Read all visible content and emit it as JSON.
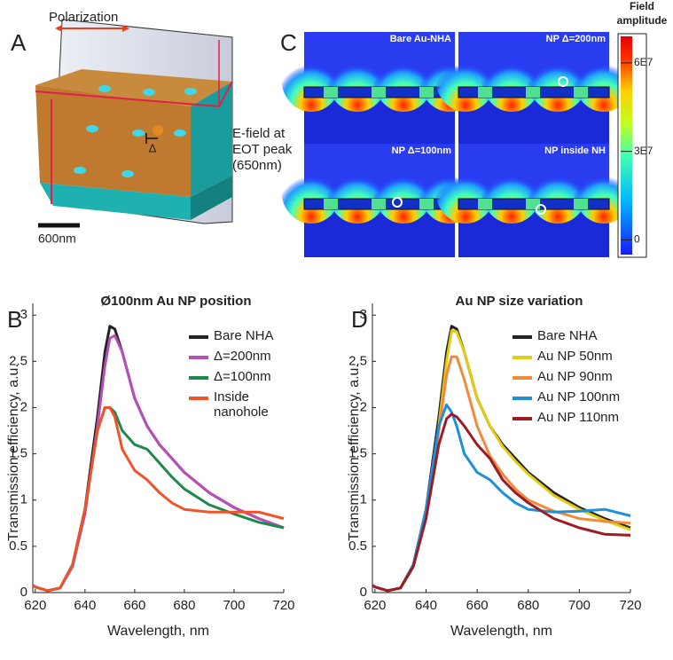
{
  "panel_labels": [
    "A",
    "B",
    "C",
    "D"
  ],
  "panel_a": {
    "polarization": "Polarization",
    "delta": "Δ",
    "scale_bar": "600nm",
    "annotation": "E-field at EOT peak (650nm)"
  },
  "panel_c": {
    "map_titles": [
      "Bare Au-NHA",
      "NP Δ=200nm",
      "NP Δ=100nm",
      "NP inside NH"
    ],
    "colorbar": {
      "title": "Field amplitude",
      "lim": [
        -5000000,
        69000000
      ],
      "ticks": [
        0,
        {
          "value": 30000000,
          "label": "3E7"
        },
        {
          "value": 60000000,
          "label": "6E7"
        }
      ]
    }
  },
  "chart_data": [
    {
      "type": "line",
      "title": "Ø100nm Au NP position",
      "x_label": "Wavelength, nm",
      "y_label": "Transmission efficiency, a.u.",
      "x": [
        619,
        620,
        625,
        630,
        635,
        640,
        645,
        648,
        650,
        652,
        655,
        660,
        665,
        670,
        675,
        680,
        690,
        700,
        710,
        720
      ],
      "xlim": [
        619,
        720
      ],
      "ylim": [
        0,
        3.05
      ],
      "xticks": [
        620,
        640,
        660,
        680,
        700,
        720
      ],
      "yticks": [
        0,
        0.5,
        1,
        1.5,
        2,
        2.5,
        3
      ],
      "grid": false,
      "series": [
        {
          "name": "Bare NHA",
          "color": "#222222",
          "values": [
            0.08,
            0.06,
            0.02,
            0.05,
            0.3,
            0.9,
            1.9,
            2.6,
            2.88,
            2.85,
            2.6,
            2.1,
            1.8,
            1.6,
            1.45,
            1.3,
            1.08,
            0.92,
            0.8,
            0.7
          ]
        },
        {
          "name": "Δ=200nm",
          "color": "#b84fb8",
          "values": [
            0.08,
            0.06,
            0.02,
            0.05,
            0.28,
            0.85,
            1.8,
            2.45,
            2.75,
            2.78,
            2.6,
            2.1,
            1.8,
            1.6,
            1.45,
            1.3,
            1.08,
            0.92,
            0.8,
            0.7
          ]
        },
        {
          "name": "Δ=100nm",
          "color": "#1e8a4a",
          "values": [
            0.08,
            0.06,
            0.02,
            0.05,
            0.3,
            0.9,
            1.75,
            2.0,
            2.0,
            1.95,
            1.75,
            1.6,
            1.55,
            1.4,
            1.25,
            1.12,
            0.95,
            0.85,
            0.76,
            0.7
          ]
        },
        {
          "name": "Inside nanohole",
          "color": "#f0532a",
          "values": [
            0.08,
            0.06,
            0.02,
            0.05,
            0.3,
            0.9,
            1.75,
            2.0,
            2.0,
            1.9,
            1.55,
            1.32,
            1.22,
            1.08,
            0.97,
            0.9,
            0.87,
            0.87,
            0.87,
            0.8
          ]
        }
      ]
    },
    {
      "type": "line",
      "title": "Au NP size variation",
      "x_label": "Wavelength, nm",
      "y_label": "Transmission efficiency, a.u.",
      "x": [
        619,
        620,
        625,
        630,
        635,
        640,
        645,
        648,
        650,
        652,
        655,
        660,
        665,
        670,
        675,
        680,
        690,
        700,
        710,
        720
      ],
      "xlim": [
        619,
        720
      ],
      "ylim": [
        0,
        3.05
      ],
      "xticks": [
        620,
        640,
        660,
        680,
        700,
        720
      ],
      "yticks": [
        0,
        0.5,
        1,
        1.5,
        2,
        2.5,
        3
      ],
      "grid": false,
      "series": [
        {
          "name": "Bare NHA",
          "color": "#222222",
          "values": [
            0.08,
            0.06,
            0.02,
            0.05,
            0.3,
            0.9,
            1.9,
            2.6,
            2.88,
            2.85,
            2.6,
            2.1,
            1.8,
            1.6,
            1.45,
            1.3,
            1.08,
            0.92,
            0.8,
            0.7
          ]
        },
        {
          "name": "Au NP 50nm",
          "color": "#e3cc12",
          "values": [
            0.08,
            0.06,
            0.02,
            0.05,
            0.28,
            0.85,
            1.8,
            2.5,
            2.83,
            2.82,
            2.6,
            2.1,
            1.8,
            1.58,
            1.42,
            1.28,
            1.05,
            0.9,
            0.78,
            0.68
          ]
        },
        {
          "name": "Au NP 90nm",
          "color": "#f28a3c",
          "values": [
            0.08,
            0.06,
            0.02,
            0.05,
            0.28,
            0.85,
            1.75,
            2.35,
            2.55,
            2.55,
            2.3,
            1.8,
            1.48,
            1.28,
            1.12,
            1.0,
            0.88,
            0.8,
            0.77,
            0.75
          ]
        },
        {
          "name": "Au NP 100nm",
          "color": "#1f8fd6",
          "values": [
            0.08,
            0.06,
            0.02,
            0.05,
            0.3,
            0.9,
            1.8,
            2.03,
            1.95,
            1.8,
            1.5,
            1.3,
            1.22,
            1.08,
            0.97,
            0.9,
            0.87,
            0.88,
            0.9,
            0.83
          ]
        },
        {
          "name": "Au NP 110nm",
          "color": "#9e1b25",
          "values": [
            0.08,
            0.06,
            0.02,
            0.05,
            0.28,
            0.8,
            1.6,
            1.88,
            1.93,
            1.9,
            1.8,
            1.6,
            1.45,
            1.22,
            1.08,
            0.97,
            0.8,
            0.7,
            0.63,
            0.62
          ]
        }
      ]
    }
  ]
}
